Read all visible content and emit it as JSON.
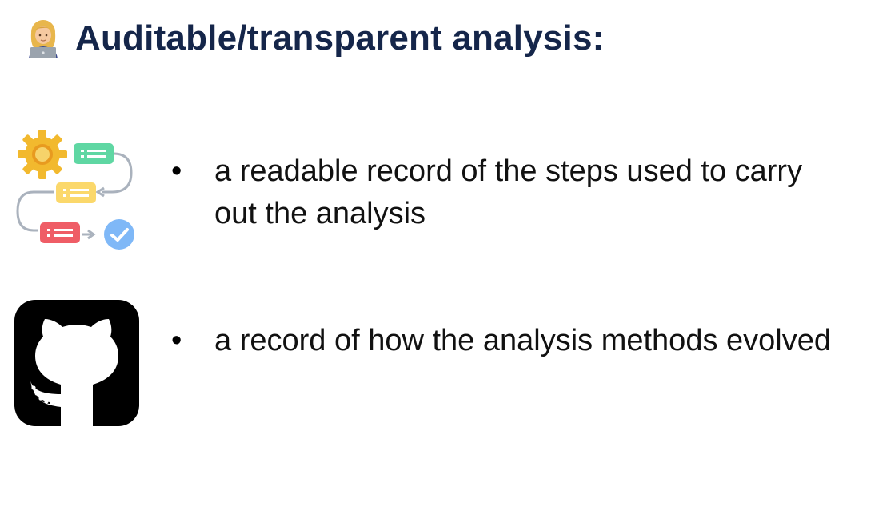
{
  "slide": {
    "title": "Auditable/transparent analysis:",
    "title_icon": "person-at-laptop-icon",
    "title_color": "#15264a"
  },
  "bullets": [
    {
      "marker": "•",
      "text": "a readable record of the steps used to carry out the analysis",
      "icon": "workflow-steps-icon"
    },
    {
      "marker": "•",
      "text": "a record of how the analysis methods evolved",
      "icon": "github-logo-icon"
    }
  ]
}
